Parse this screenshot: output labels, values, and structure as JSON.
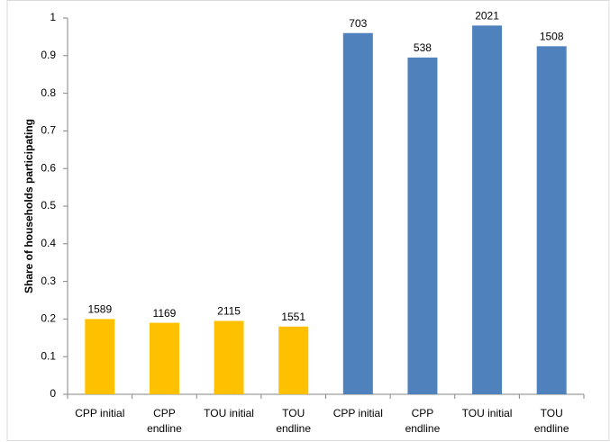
{
  "chart_data": {
    "type": "bar",
    "y_label": "Share of households participating",
    "categories": [
      [
        "CPP initial"
      ],
      [
        "CPP",
        "endline"
      ],
      [
        "TOU initial"
      ],
      [
        "TOU",
        "endline"
      ],
      [
        "CPP initial"
      ],
      [
        "CPP",
        "endline"
      ],
      [
        "TOU initial"
      ],
      [
        "TOU",
        "endline"
      ]
    ],
    "values": [
      0.2,
      0.19,
      0.195,
      0.18,
      0.96,
      0.895,
      0.98,
      0.925
    ],
    "counts": [
      1589,
      1169,
      2115,
      1551,
      703,
      538,
      2021,
      1508
    ],
    "colors": [
      "#ffc000",
      "#ffc000",
      "#ffc000",
      "#ffc000",
      "#4f81bd",
      "#4f81bd",
      "#4f81bd",
      "#4f81bd"
    ],
    "ylim": [
      0,
      1
    ],
    "yticks": [
      0,
      0.1,
      0.2,
      0.3,
      0.4,
      0.5,
      0.6,
      0.7,
      0.8,
      0.9,
      1
    ],
    "grid": false
  }
}
